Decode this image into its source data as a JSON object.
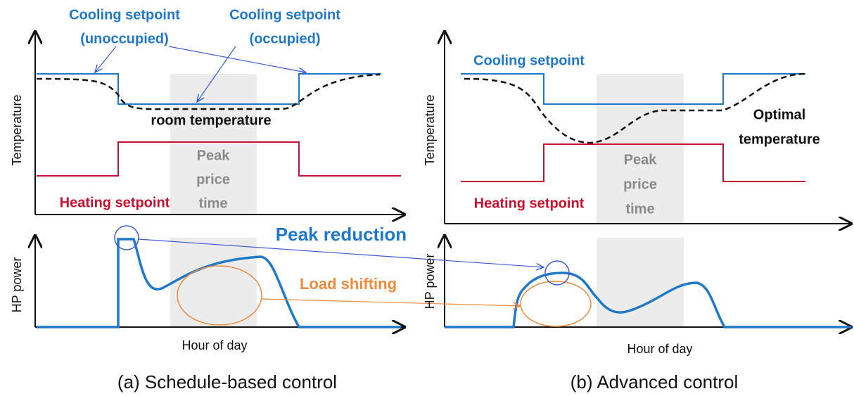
{
  "left": {
    "cooling_unoccupied": [
      "Cooling setpoint",
      "(unoccupied)"
    ],
    "cooling_occupied": [
      "Cooling setpoint",
      "(occupied)"
    ],
    "room_temperature": "room temperature",
    "y_label_top": "Temperature",
    "peak": [
      "Peak",
      "price",
      "time"
    ],
    "heating": "Heating setpoint",
    "y_label_bottom": "HP power",
    "x_label": "Hour of day",
    "caption": "(a) Schedule-based control"
  },
  "middle": {
    "peak_reduction": "Peak reduction",
    "load_shifting": "Load shifting"
  },
  "right": {
    "cooling": "Cooling setpoint",
    "optimal": [
      "Optimal",
      "temperature"
    ],
    "y_label_top": "Temperature",
    "peak": [
      "Peak",
      "price",
      "time"
    ],
    "heating": "Heating setpoint",
    "y_label_bottom": "HP power",
    "x_label": "Hour of day",
    "caption": "(b) Advanced control"
  }
}
